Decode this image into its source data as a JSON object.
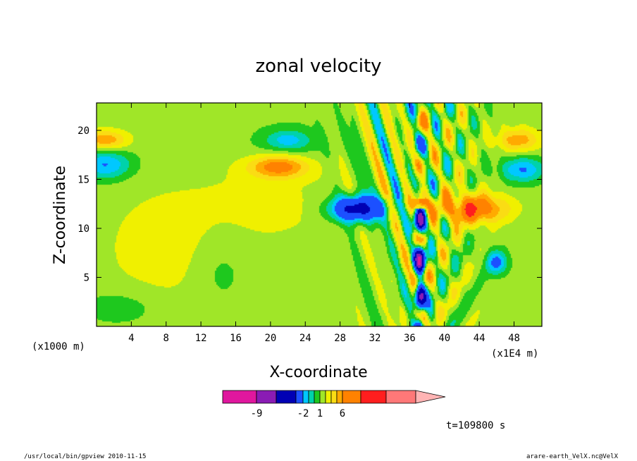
{
  "chart_data": {
    "type": "heatmap",
    "title": "zonal velocity",
    "xlabel": "X-coordinate",
    "ylabel": "Z-coordinate",
    "x_unit_left": "(x1000 m)",
    "x_unit_right": "(x1E4 m)",
    "xlim": [
      0,
      51.2
    ],
    "ylim": [
      0,
      22.8
    ],
    "x_ticks": [
      "4",
      "8",
      "12",
      "16",
      "20",
      "24",
      "28",
      "32",
      "36",
      "40",
      "44",
      "48"
    ],
    "y_ticks": [
      "5",
      "10",
      "15",
      "20"
    ],
    "colorbar": {
      "tick_labels": [
        "-9",
        "-2",
        "1",
        "6"
      ],
      "levels": [
        -12,
        -9,
        -6,
        -3,
        -2,
        -1,
        0,
        1,
        2,
        3,
        4,
        6,
        9,
        12
      ],
      "colors": [
        "#e0179e",
        "#8a1cb4",
        "#0000b4",
        "#1c50ff",
        "#00c8ff",
        "#00d2aa",
        "#1ec81e",
        "#a0e628",
        "#f0f000",
        "#fadc14",
        "#ffaa00",
        "#ff8200",
        "#ff1e1e",
        "#ff7878",
        "#ffb4b4"
      ]
    },
    "time_label": "t=109800 s",
    "footer_left": "/usr/local/bin/gpview  2010-11-15",
    "footer_right": "arare-earth_VelX.nc@VelX"
  },
  "legend_colors": {
    "axes": "#000000",
    "background": "#ffffff"
  }
}
